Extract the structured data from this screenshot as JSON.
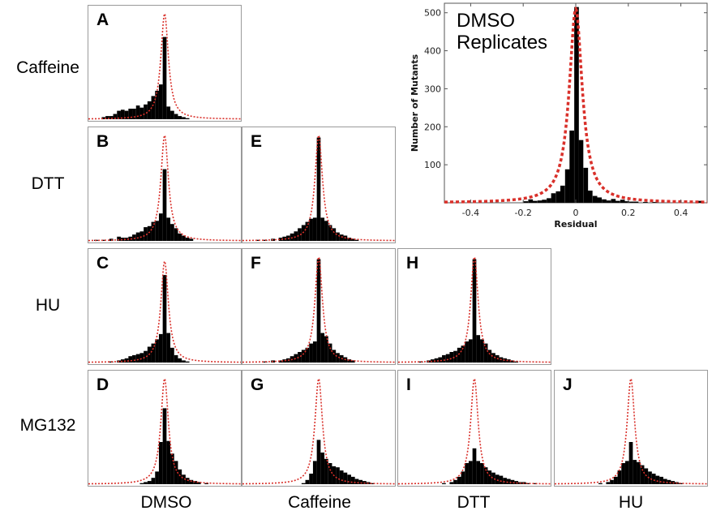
{
  "figure": {
    "row_labels": [
      "Caffeine",
      "DTT",
      "HU",
      "MG132"
    ],
    "column_labels": [
      "DMSO",
      "Caffeine",
      "DTT",
      "HU"
    ],
    "colors": {
      "bars": "#000000",
      "fit": "#d9302a",
      "frame": "#9a9a9a"
    }
  },
  "chart_data": [
    {
      "id": "main",
      "type": "bar",
      "title": "DMSO Replicates",
      "xlabel": "Residual",
      "ylabel": "Number of Mutants",
      "xlim": [
        -0.5,
        0.5
      ],
      "ylim": [
        0,
        525
      ],
      "xticks": [
        -0.4,
        -0.2,
        0,
        0.2,
        0.4
      ],
      "xtick_labels": [
        "-0.4",
        "-0.2",
        "0",
        "0.2",
        "0.4"
      ],
      "yticks": [
        100,
        200,
        300,
        400,
        500
      ],
      "ytick_labels": [
        "100",
        "200",
        "300",
        "400",
        "500"
      ],
      "grid": false,
      "bin_width": 0.0175,
      "bins": [
        {
          "x": -0.19,
          "y": 4
        },
        {
          "x": -0.172,
          "y": 9
        },
        {
          "x": -0.155,
          "y": 5
        },
        {
          "x": -0.137,
          "y": 6
        },
        {
          "x": -0.12,
          "y": 8
        },
        {
          "x": -0.102,
          "y": 12
        },
        {
          "x": -0.085,
          "y": 25
        },
        {
          "x": -0.067,
          "y": 30
        },
        {
          "x": -0.05,
          "y": 45
        },
        {
          "x": -0.032,
          "y": 88
        },
        {
          "x": -0.015,
          "y": 190
        },
        {
          "x": 0.003,
          "y": 515
        },
        {
          "x": 0.02,
          "y": 165
        },
        {
          "x": 0.038,
          "y": 92
        },
        {
          "x": 0.055,
          "y": 32
        },
        {
          "x": 0.073,
          "y": 18
        },
        {
          "x": 0.09,
          "y": 14
        },
        {
          "x": 0.108,
          "y": 9
        },
        {
          "x": 0.125,
          "y": 6
        },
        {
          "x": 0.143,
          "y": 10
        },
        {
          "x": 0.16,
          "y": 5
        },
        {
          "x": 0.178,
          "y": 8
        },
        {
          "x": 0.195,
          "y": 4
        },
        {
          "x": 0.213,
          "y": 3
        },
        {
          "x": 0.23,
          "y": 3
        },
        {
          "x": 0.265,
          "y": 2
        },
        {
          "x": 0.3,
          "y": 2
        },
        {
          "x": 0.47,
          "y": 5
        }
      ],
      "fit": {
        "kind": "lorentzian",
        "center": 0.0,
        "peak": 510,
        "hwhm": 0.03
      }
    },
    {
      "id": "A",
      "type": "bar",
      "row": "Caffeine",
      "col": "DMSO",
      "xlim": [
        -0.5,
        0.5
      ],
      "fit": {
        "kind": "lorentzian",
        "center": 0.0,
        "peak": 1.0,
        "hwhm": 0.03
      },
      "bin_width": 0.025,
      "bins": [
        [
          -0.4,
          0.02
        ],
        [
          -0.375,
          0.03
        ],
        [
          -0.35,
          0.03
        ],
        [
          -0.325,
          0.05
        ],
        [
          -0.3,
          0.08
        ],
        [
          -0.275,
          0.09
        ],
        [
          -0.25,
          0.08
        ],
        [
          -0.225,
          0.1
        ],
        [
          -0.2,
          0.1
        ],
        [
          -0.175,
          0.13
        ],
        [
          -0.15,
          0.11
        ],
        [
          -0.125,
          0.14
        ],
        [
          -0.1,
          0.17
        ],
        [
          -0.075,
          0.22
        ],
        [
          -0.05,
          0.27
        ],
        [
          -0.025,
          0.33
        ],
        [
          0.0,
          0.78
        ],
        [
          0.025,
          0.12
        ],
        [
          0.05,
          0.08
        ],
        [
          0.075,
          0.05
        ],
        [
          0.1,
          0.03
        ],
        [
          0.125,
          0.02
        ],
        [
          0.15,
          0.01
        ]
      ]
    },
    {
      "id": "B",
      "type": "bar",
      "row": "DTT",
      "col": "DMSO",
      "xlim": [
        -0.5,
        0.5
      ],
      "fit": {
        "kind": "lorentzian",
        "center": 0.0,
        "peak": 1.0,
        "hwhm": 0.03
      },
      "bin_width": 0.025,
      "bins": [
        [
          -0.45,
          0.01
        ],
        [
          -0.4,
          0.01
        ],
        [
          -0.35,
          0.02
        ],
        [
          -0.3,
          0.04
        ],
        [
          -0.275,
          0.03
        ],
        [
          -0.25,
          0.03
        ],
        [
          -0.225,
          0.04
        ],
        [
          -0.2,
          0.06
        ],
        [
          -0.175,
          0.08
        ],
        [
          -0.15,
          0.09
        ],
        [
          -0.125,
          0.13
        ],
        [
          -0.1,
          0.14
        ],
        [
          -0.075,
          0.18
        ],
        [
          -0.05,
          0.19
        ],
        [
          -0.025,
          0.26
        ],
        [
          0.0,
          0.68
        ],
        [
          0.025,
          0.22
        ],
        [
          0.05,
          0.16
        ],
        [
          0.075,
          0.12
        ],
        [
          0.1,
          0.07
        ],
        [
          0.125,
          0.05
        ],
        [
          0.15,
          0.03
        ],
        [
          0.175,
          0.02
        ]
      ]
    },
    {
      "id": "C",
      "type": "bar",
      "row": "HU",
      "col": "DMSO",
      "xlim": [
        -0.5,
        0.5
      ],
      "fit": {
        "kind": "lorentzian",
        "center": 0.0,
        "peak": 0.96,
        "hwhm": 0.03
      },
      "bin_width": 0.025,
      "bins": [
        [
          -0.35,
          0.01
        ],
        [
          -0.3,
          0.02
        ],
        [
          -0.275,
          0.03
        ],
        [
          -0.25,
          0.04
        ],
        [
          -0.225,
          0.06
        ],
        [
          -0.2,
          0.07
        ],
        [
          -0.175,
          0.08
        ],
        [
          -0.15,
          0.09
        ],
        [
          -0.125,
          0.11
        ],
        [
          -0.1,
          0.15
        ],
        [
          -0.075,
          0.18
        ],
        [
          -0.05,
          0.22
        ],
        [
          -0.025,
          0.27
        ],
        [
          0.0,
          0.83
        ],
        [
          0.025,
          0.28
        ],
        [
          0.05,
          0.14
        ],
        [
          0.075,
          0.07
        ],
        [
          0.1,
          0.04
        ],
        [
          0.125,
          0.02
        ],
        [
          0.15,
          0.01
        ]
      ]
    },
    {
      "id": "D",
      "type": "bar",
      "row": "MG132",
      "col": "DMSO",
      "xlim": [
        -0.5,
        0.5
      ],
      "fit": {
        "kind": "lorentzian",
        "center": 0.0,
        "peak": 1.0,
        "hwhm": 0.03
      },
      "bin_width": 0.025,
      "bins": [
        [
          -0.15,
          0.01
        ],
        [
          -0.125,
          0.02
        ],
        [
          -0.1,
          0.03
        ],
        [
          -0.075,
          0.06
        ],
        [
          -0.05,
          0.12
        ],
        [
          -0.025,
          0.4
        ],
        [
          0.0,
          0.72
        ],
        [
          0.025,
          0.41
        ],
        [
          0.05,
          0.29
        ],
        [
          0.075,
          0.22
        ],
        [
          0.1,
          0.14
        ],
        [
          0.125,
          0.09
        ],
        [
          0.15,
          0.06
        ],
        [
          0.175,
          0.04
        ],
        [
          0.2,
          0.03
        ],
        [
          0.225,
          0.02
        ],
        [
          0.275,
          0.01
        ]
      ]
    },
    {
      "id": "E",
      "type": "bar",
      "row": "DTT",
      "col": "Caffeine",
      "xlim": [
        -0.5,
        0.5
      ],
      "fit": {
        "kind": "lorentzian",
        "center": 0.0,
        "peak": 1.0,
        "hwhm": 0.03
      },
      "bin_width": 0.025,
      "bins": [
        [
          -0.4,
          0.01
        ],
        [
          -0.35,
          0.01
        ],
        [
          -0.3,
          0.02
        ],
        [
          -0.25,
          0.03
        ],
        [
          -0.225,
          0.04
        ],
        [
          -0.2,
          0.05
        ],
        [
          -0.175,
          0.07
        ],
        [
          -0.15,
          0.09
        ],
        [
          -0.125,
          0.12
        ],
        [
          -0.1,
          0.15
        ],
        [
          -0.075,
          0.18
        ],
        [
          -0.05,
          0.21
        ],
        [
          -0.025,
          0.22
        ],
        [
          0.0,
          0.98
        ],
        [
          0.025,
          0.22
        ],
        [
          0.05,
          0.19
        ],
        [
          0.075,
          0.15
        ],
        [
          0.1,
          0.12
        ],
        [
          0.125,
          0.08
        ],
        [
          0.15,
          0.06
        ],
        [
          0.175,
          0.05
        ],
        [
          0.2,
          0.03
        ],
        [
          0.225,
          0.02
        ],
        [
          0.25,
          0.01
        ]
      ]
    },
    {
      "id": "F",
      "type": "bar",
      "row": "HU",
      "col": "Caffeine",
      "xlim": [
        -0.5,
        0.5
      ],
      "fit": {
        "kind": "lorentzian",
        "center": 0.0,
        "peak": 1.0,
        "hwhm": 0.03
      },
      "bin_width": 0.025,
      "bins": [
        [
          -0.35,
          0.01
        ],
        [
          -0.3,
          0.02
        ],
        [
          -0.25,
          0.02
        ],
        [
          -0.225,
          0.03
        ],
        [
          -0.2,
          0.04
        ],
        [
          -0.175,
          0.06
        ],
        [
          -0.15,
          0.08
        ],
        [
          -0.125,
          0.1
        ],
        [
          -0.1,
          0.12
        ],
        [
          -0.075,
          0.14
        ],
        [
          -0.05,
          0.18
        ],
        [
          -0.025,
          0.2
        ],
        [
          0.0,
          0.98
        ],
        [
          0.025,
          0.28
        ],
        [
          0.05,
          0.25
        ],
        [
          0.075,
          0.18
        ],
        [
          0.1,
          0.12
        ],
        [
          0.125,
          0.09
        ],
        [
          0.15,
          0.07
        ],
        [
          0.175,
          0.05
        ],
        [
          0.2,
          0.03
        ],
        [
          0.225,
          0.02
        ]
      ]
    },
    {
      "id": "H",
      "type": "bar",
      "row": "HU",
      "col": "DTT",
      "xlim": [
        -0.5,
        0.5
      ],
      "fit": {
        "kind": "lorentzian",
        "center": 0.0,
        "peak": 1.0,
        "hwhm": 0.03
      },
      "bin_width": 0.025,
      "bins": [
        [
          -0.35,
          0.01
        ],
        [
          -0.3,
          0.02
        ],
        [
          -0.275,
          0.03
        ],
        [
          -0.25,
          0.04
        ],
        [
          -0.225,
          0.05
        ],
        [
          -0.2,
          0.07
        ],
        [
          -0.175,
          0.08
        ],
        [
          -0.15,
          0.1
        ],
        [
          -0.125,
          0.11
        ],
        [
          -0.1,
          0.14
        ],
        [
          -0.075,
          0.16
        ],
        [
          -0.05,
          0.2
        ],
        [
          -0.025,
          0.22
        ],
        [
          0.0,
          0.98
        ],
        [
          0.025,
          0.26
        ],
        [
          0.05,
          0.22
        ],
        [
          0.075,
          0.18
        ],
        [
          0.1,
          0.12
        ],
        [
          0.125,
          0.09
        ],
        [
          0.15,
          0.07
        ],
        [
          0.175,
          0.05
        ],
        [
          0.2,
          0.04
        ],
        [
          0.225,
          0.03
        ],
        [
          0.25,
          0.02
        ],
        [
          0.275,
          0.01
        ]
      ]
    },
    {
      "id": "G",
      "type": "bar",
      "row": "MG132",
      "col": "Caffeine",
      "xlim": [
        -0.5,
        0.5
      ],
      "fit": {
        "kind": "lorentzian",
        "center": 0.0,
        "peak": 1.0,
        "hwhm": 0.03
      },
      "bin_width": 0.025,
      "bins": [
        [
          -0.1,
          0.01
        ],
        [
          -0.075,
          0.04
        ],
        [
          -0.05,
          0.1
        ],
        [
          -0.025,
          0.22
        ],
        [
          0.0,
          0.42
        ],
        [
          0.025,
          0.3
        ],
        [
          0.05,
          0.24
        ],
        [
          0.075,
          0.2
        ],
        [
          0.1,
          0.17
        ],
        [
          0.125,
          0.16
        ],
        [
          0.15,
          0.13
        ],
        [
          0.175,
          0.11
        ],
        [
          0.2,
          0.09
        ],
        [
          0.225,
          0.07
        ],
        [
          0.25,
          0.05
        ],
        [
          0.275,
          0.04
        ],
        [
          0.3,
          0.03
        ],
        [
          0.325,
          0.02
        ],
        [
          0.35,
          0.01
        ]
      ]
    },
    {
      "id": "I",
      "type": "bar",
      "row": "MG132",
      "col": "DTT",
      "xlim": [
        -0.5,
        0.5
      ],
      "fit": {
        "kind": "lorentzian",
        "center": 0.0,
        "peak": 1.0,
        "hwhm": 0.03
      },
      "bin_width": 0.025,
      "bins": [
        [
          -0.2,
          0.01
        ],
        [
          -0.15,
          0.02
        ],
        [
          -0.125,
          0.04
        ],
        [
          -0.1,
          0.07
        ],
        [
          -0.075,
          0.12
        ],
        [
          -0.05,
          0.2
        ],
        [
          -0.025,
          0.22
        ],
        [
          0.0,
          0.34
        ],
        [
          0.025,
          0.22
        ],
        [
          0.05,
          0.2
        ],
        [
          0.075,
          0.16
        ],
        [
          0.1,
          0.13
        ],
        [
          0.125,
          0.11
        ],
        [
          0.15,
          0.09
        ],
        [
          0.175,
          0.08
        ],
        [
          0.2,
          0.06
        ],
        [
          0.225,
          0.05
        ],
        [
          0.25,
          0.04
        ],
        [
          0.275,
          0.03
        ],
        [
          0.3,
          0.02
        ],
        [
          0.325,
          0.02
        ],
        [
          0.35,
          0.01
        ],
        [
          0.4,
          0.01
        ]
      ]
    },
    {
      "id": "J",
      "type": "bar",
      "row": "MG132",
      "col": "HU",
      "xlim": [
        -0.5,
        0.5
      ],
      "fit": {
        "kind": "lorentzian",
        "center": 0.0,
        "peak": 1.0,
        "hwhm": 0.03
      },
      "bin_width": 0.025,
      "bins": [
        [
          -0.2,
          0.01
        ],
        [
          -0.15,
          0.02
        ],
        [
          -0.125,
          0.04
        ],
        [
          -0.1,
          0.07
        ],
        [
          -0.075,
          0.13
        ],
        [
          -0.05,
          0.2
        ],
        [
          -0.025,
          0.22
        ],
        [
          0.0,
          0.4
        ],
        [
          0.025,
          0.23
        ],
        [
          0.05,
          0.21
        ],
        [
          0.075,
          0.18
        ],
        [
          0.1,
          0.15
        ],
        [
          0.125,
          0.12
        ],
        [
          0.15,
          0.1
        ],
        [
          0.175,
          0.08
        ],
        [
          0.2,
          0.07
        ],
        [
          0.225,
          0.05
        ],
        [
          0.25,
          0.04
        ],
        [
          0.275,
          0.03
        ],
        [
          0.3,
          0.02
        ],
        [
          0.325,
          0.01
        ]
      ]
    }
  ]
}
